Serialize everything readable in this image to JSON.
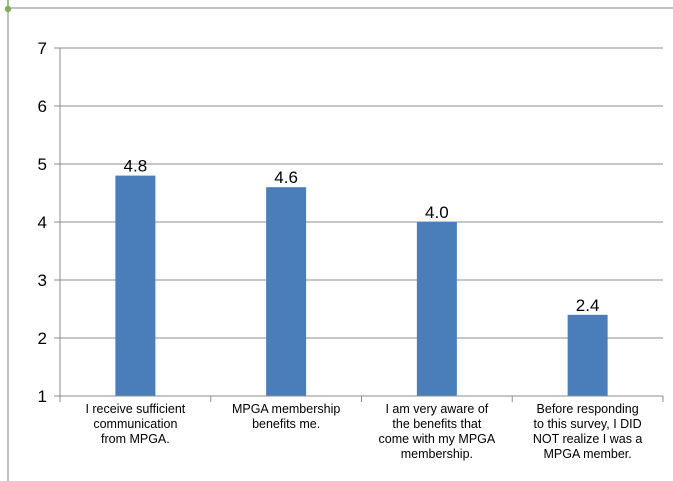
{
  "chart_data": {
    "type": "bar",
    "title": "",
    "xlabel": "",
    "ylabel": "",
    "ylim": [
      1,
      7
    ],
    "yticks": [
      1,
      2,
      3,
      4,
      5,
      6,
      7
    ],
    "grid": true,
    "categories": [
      [
        "I receive sufficient",
        "communication",
        "from MPGA."
      ],
      [
        "MPGA membership",
        "benefits me."
      ],
      [
        "I am very aware of",
        "the benefits that",
        "come with my MPGA",
        "membership."
      ],
      [
        "Before responding",
        "to this survey, I DID",
        "NOT realize I was a",
        "MPGA member."
      ]
    ],
    "values": [
      4.8,
      4.6,
      4.0,
      2.4
    ],
    "data_labels": [
      "4.8",
      "4.6",
      "4.0",
      "2.4"
    ],
    "colors": {
      "bar": "#4a7ebb",
      "grid": "#8c8c8c",
      "frame": "#808080",
      "accent": "#7fae5b"
    }
  }
}
